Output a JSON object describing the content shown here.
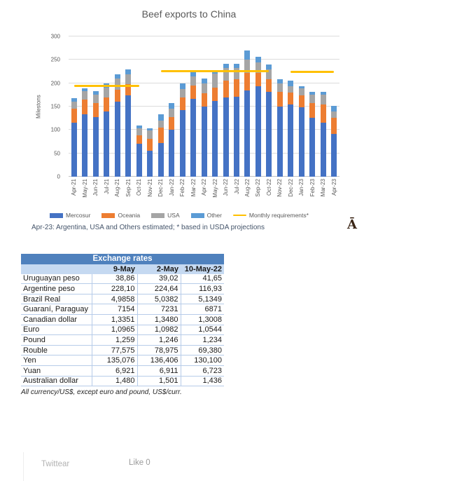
{
  "chart": {
    "title": "Beef exports to China",
    "y_axis_label": "Milestons",
    "y_ticks": [
      0,
      50,
      100,
      150,
      200,
      250,
      300
    ],
    "note": "Apr-23: Argentina, USA and Others estimated; * based in USDA projections"
  },
  "chart_data": {
    "type": "bar",
    "stacked": true,
    "title": "Beef exports to China",
    "ylabel": "Milestons",
    "ylim": [
      0,
      300
    ],
    "grid": true,
    "legend_position": "bottom",
    "categories": [
      "Apr-21",
      "May-21",
      "Jun-21",
      "Jul-21",
      "Aug-21",
      "Sep-21",
      "Oct-21",
      "Nov-21",
      "Dec-21",
      "Jan-22",
      "Feb-22",
      "Mar-22",
      "Apr-22",
      "May-22",
      "Jun-22",
      "Jul-22",
      "Aug-22",
      "Sep-22",
      "Oct-22",
      "Nov-22",
      "Dec-22",
      "Jan-23",
      "Feb-23",
      "Mar-23",
      "Apr-23"
    ],
    "series": [
      {
        "name": "Mercosur",
        "color": "#4472c4",
        "values": [
          116,
          133,
          128,
          139,
          160,
          174,
          70,
          55,
          72,
          100,
          142,
          166,
          150,
          162,
          170,
          171,
          184,
          193,
          181,
          150,
          155,
          149,
          126,
          116,
          91
        ]
      },
      {
        "name": "Oceania",
        "color": "#ed7d31",
        "values": [
          29,
          32,
          30,
          31,
          26,
          24,
          18,
          26,
          33,
          28,
          28,
          29,
          28,
          28,
          36,
          38,
          38,
          29,
          28,
          31,
          25,
          25,
          32,
          38,
          35
        ]
      },
      {
        "name": "USA",
        "color": "#a5a5a5",
        "values": [
          16,
          18,
          18,
          21,
          24,
          21,
          15,
          18,
          15,
          18,
          17,
          20,
          22,
          30,
          26,
          24,
          28,
          22,
          20,
          18,
          14,
          15,
          17,
          21,
          14
        ]
      },
      {
        "name": "Other",
        "color": "#5b9bd5",
        "values": [
          7,
          6,
          7,
          8,
          9,
          11,
          7,
          5,
          13,
          12,
          12,
          13,
          10,
          6,
          10,
          9,
          20,
          13,
          11,
          9,
          11,
          5,
          7,
          7,
          11
        ]
      }
    ],
    "reference_line": {
      "name": "Monthly requirements*",
      "color": "#ffc000",
      "segments": [
        {
          "start": "Apr-21",
          "end": "Oct-21",
          "value": 195
        },
        {
          "start": "Dec-21",
          "end": "Oct-22",
          "value": 226
        },
        {
          "start": "Dec-22",
          "end": "Apr-23",
          "value": 225
        }
      ]
    }
  },
  "glyph": "Ā",
  "table": {
    "title": "Exchange rates",
    "header_bg": "#4f81bd",
    "subhead_bg": "#c5d9f1",
    "columns": [
      "",
      "9-May",
      "2-May",
      "10-May-22"
    ],
    "rows": [
      [
        "Uruguayan peso",
        "38,86",
        "39,02",
        "41,65"
      ],
      [
        "Argentine peso",
        "228,10",
        "224,64",
        "116,93"
      ],
      [
        "Brazil Real",
        "4,9858",
        "5,0382",
        "5,1349"
      ],
      [
        "Guaraní, Paraguay",
        "7154",
        "7231",
        "6871"
      ],
      [
        "Canadian dollar",
        "1,3351",
        "1,3480",
        "1,3008"
      ],
      [
        "Euro",
        "1,0965",
        "1,0982",
        "1,0544"
      ],
      [
        "Pound",
        "1,259",
        "1,246",
        "1,234"
      ],
      [
        "Rouble",
        "77,575",
        "78,975",
        "69,380"
      ],
      [
        "Yen",
        "135,076",
        "136,406",
        "130,100"
      ],
      [
        "Yuan",
        "6,921",
        "6,911",
        "6,723"
      ],
      [
        "Australian dollar",
        "1,480",
        "1,501",
        "1,436"
      ]
    ],
    "footnote": "All currency/US$, except euro and pound, US$/curr."
  },
  "footer": {
    "tweet_label": "Twittear",
    "like_label": "Like 0"
  }
}
